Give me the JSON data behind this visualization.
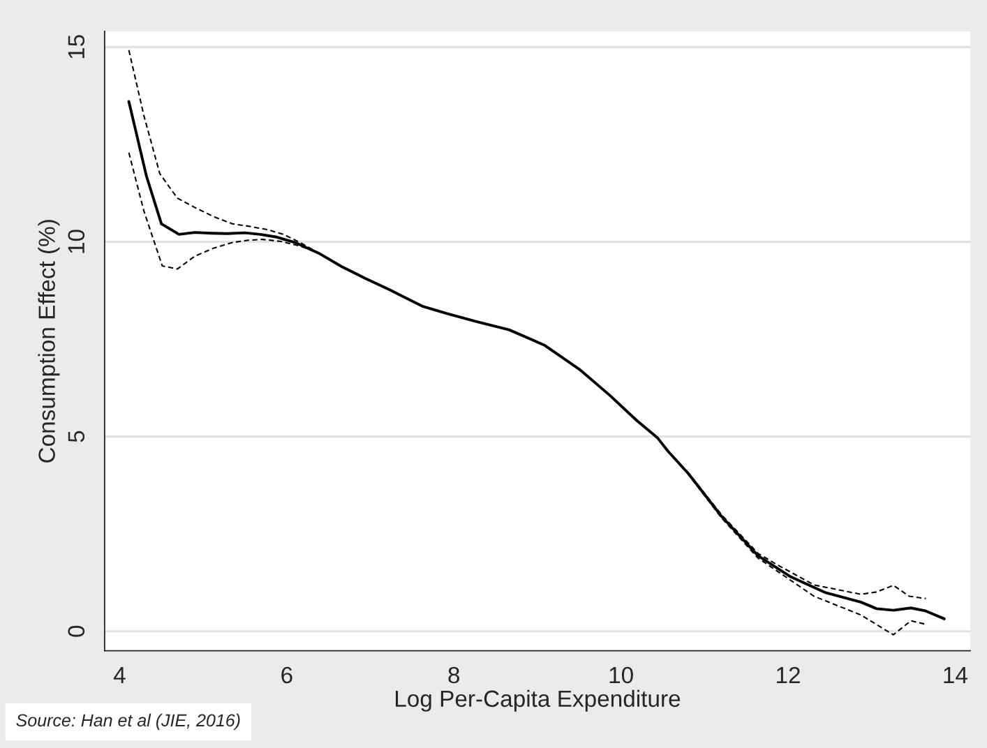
{
  "chart_data": {
    "type": "line",
    "xlabel": "Log Per-Capita Expenditure",
    "ylabel": "Consumption Effect (%)",
    "annotations": [
      "Source: Han et al (JIE, 2016)"
    ],
    "xlim": [
      3.82,
      14.18
    ],
    "ylim": [
      -0.5,
      15.4
    ],
    "xticks": [
      4,
      6,
      8,
      10,
      12,
      14
    ],
    "yticks": [
      0,
      5,
      10,
      15
    ],
    "grid": "y",
    "series": [
      {
        "color": "#000000",
        "line_style": "solid",
        "x": [
          4.11,
          4.32,
          4.5,
          4.71,
          4.9,
          5.1,
          5.29,
          5.5,
          5.68,
          5.88,
          6.1,
          6.38,
          6.66,
          6.94,
          7.24,
          7.35,
          7.63,
          7.91,
          8.27,
          8.66,
          9.08,
          9.5,
          9.86,
          10.19,
          10.44,
          10.56,
          10.81,
          11.2,
          11.64,
          12.03,
          12.45,
          12.87,
          13.06,
          13.26,
          13.47,
          13.65,
          13.87
        ],
        "values": [
          13.6,
          11.69,
          10.46,
          10.19,
          10.24,
          10.22,
          10.21,
          10.23,
          10.19,
          10.12,
          9.98,
          9.71,
          9.36,
          9.06,
          8.76,
          8.64,
          8.34,
          8.16,
          7.95,
          7.74,
          7.35,
          6.73,
          6.07,
          5.41,
          4.96,
          4.63,
          4.04,
          2.96,
          1.94,
          1.4,
          0.99,
          0.75,
          0.58,
          0.54,
          0.6,
          0.52,
          0.32
        ]
      },
      {
        "color": "#000000",
        "line_style": "dashed",
        "x": [
          4.11,
          4.29,
          4.48,
          4.69,
          4.9,
          5.13,
          5.35,
          5.54,
          5.77,
          5.96,
          6.16,
          6.38,
          6.66,
          6.94,
          7.24,
          7.35,
          7.63,
          7.91,
          8.27,
          8.66,
          9.08,
          9.5,
          9.86,
          10.19,
          10.44,
          10.56,
          10.81,
          11.2,
          11.64,
          11.86,
          12.31,
          12.87,
          13.06,
          13.26,
          13.45,
          13.65
        ],
        "values": [
          14.92,
          13.24,
          11.75,
          11.12,
          10.88,
          10.64,
          10.46,
          10.4,
          10.31,
          10.19,
          9.98,
          9.71,
          9.36,
          9.06,
          8.76,
          8.64,
          8.34,
          8.16,
          7.95,
          7.74,
          7.35,
          6.73,
          6.07,
          5.41,
          4.96,
          4.63,
          4.06,
          3.0,
          2.0,
          1.72,
          1.19,
          0.95,
          1.01,
          1.18,
          0.9,
          0.84
        ]
      },
      {
        "color": "#000000",
        "line_style": "dashed",
        "x": [
          4.11,
          4.29,
          4.51,
          4.69,
          4.9,
          5.13,
          5.35,
          5.54,
          5.71,
          5.93,
          6.16,
          6.38,
          6.66,
          6.94,
          7.24,
          7.35,
          7.63,
          7.91,
          8.27,
          8.66,
          9.08,
          9.5,
          9.86,
          10.19,
          10.44,
          10.56,
          10.81,
          11.2,
          11.64,
          11.86,
          12.31,
          12.87,
          13.26,
          13.47,
          13.65
        ],
        "values": [
          12.29,
          10.79,
          9.38,
          9.3,
          9.63,
          9.84,
          9.98,
          10.04,
          10.06,
          10.01,
          9.89,
          9.71,
          9.36,
          9.06,
          8.76,
          8.64,
          8.34,
          8.16,
          7.95,
          7.74,
          7.35,
          6.73,
          6.07,
          5.41,
          4.96,
          4.63,
          4.02,
          2.92,
          1.88,
          1.56,
          0.9,
          0.42,
          -0.09,
          0.27,
          0.18
        ]
      }
    ]
  }
}
